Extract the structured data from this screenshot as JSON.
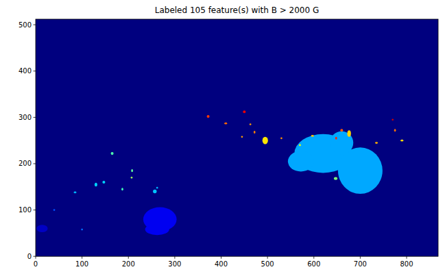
{
  "chart_data": {
    "type": "image",
    "title": "Labeled 105 feature(s) with B > 2000 G",
    "color": "#00007f",
    "xlim": [
      0,
      868
    ],
    "ylim": [
      0,
      512
    ],
    "xticks": [
      0,
      100,
      200,
      300,
      400,
      500,
      600,
      700,
      800
    ],
    "yticks": [
      0,
      100,
      200,
      300,
      400,
      500
    ],
    "features": [
      {
        "x": 620,
        "y": 222,
        "rx": 62,
        "ry": 42,
        "color": "#00a8ff"
      },
      {
        "x": 700,
        "y": 185,
        "rx": 48,
        "ry": 50,
        "color": "#00a8ff"
      },
      {
        "x": 572,
        "y": 205,
        "rx": 28,
        "ry": 22,
        "color": "#00a8ff"
      },
      {
        "x": 660,
        "y": 245,
        "rx": 25,
        "ry": 25,
        "color": "#00a8ff"
      },
      {
        "x": 268,
        "y": 80,
        "rx": 36,
        "ry": 26,
        "color": "#0000f1"
      },
      {
        "x": 262,
        "y": 58,
        "rx": 26,
        "ry": 12,
        "color": "#0000f1"
      },
      {
        "x": 14,
        "y": 60,
        "rx": 12,
        "ry": 8,
        "color": "#0000c4"
      },
      {
        "x": 130,
        "y": 155,
        "rx": 3,
        "ry": 4,
        "color": "#00d4ff"
      },
      {
        "x": 147,
        "y": 160,
        "rx": 3,
        "ry": 3,
        "color": "#00d4ff"
      },
      {
        "x": 187,
        "y": 145,
        "rx": 2,
        "ry": 3,
        "color": "#3fffb7"
      },
      {
        "x": 208,
        "y": 185,
        "rx": 2,
        "ry": 3,
        "color": "#5cffa0"
      },
      {
        "x": 207,
        "y": 170,
        "rx": 2,
        "ry": 2,
        "color": "#9fff5c"
      },
      {
        "x": 165,
        "y": 222,
        "rx": 3,
        "ry": 3,
        "color": "#4dffad"
      },
      {
        "x": 257,
        "y": 140,
        "rx": 4,
        "ry": 4,
        "color": "#00c4ff"
      },
      {
        "x": 85,
        "y": 138,
        "rx": 3,
        "ry": 2,
        "color": "#00b0ff"
      },
      {
        "x": 495,
        "y": 250,
        "rx": 6,
        "ry": 8,
        "color": "#ffe600"
      },
      {
        "x": 372,
        "y": 302,
        "rx": 3,
        "ry": 3,
        "color": "#ff3800"
      },
      {
        "x": 410,
        "y": 287,
        "rx": 3,
        "ry": 2,
        "color": "#ff6800"
      },
      {
        "x": 450,
        "y": 312,
        "rx": 3,
        "ry": 3,
        "color": "#e80000"
      },
      {
        "x": 463,
        "y": 285,
        "rx": 2,
        "ry": 2,
        "color": "#ff9c00"
      },
      {
        "x": 472,
        "y": 268,
        "rx": 2,
        "ry": 3,
        "color": "#ff8000"
      },
      {
        "x": 676,
        "y": 265,
        "rx": 4,
        "ry": 7,
        "color": "#ffd200"
      },
      {
        "x": 660,
        "y": 272,
        "rx": 3,
        "ry": 3,
        "color": "#ff5400"
      },
      {
        "x": 648,
        "y": 255,
        "rx": 2,
        "ry": 3,
        "color": "#ff2000"
      },
      {
        "x": 647,
        "y": 168,
        "rx": 4,
        "ry": 3,
        "color": "#7dff7a"
      },
      {
        "x": 735,
        "y": 245,
        "rx": 3,
        "ry": 2,
        "color": "#ffb000"
      },
      {
        "x": 775,
        "y": 272,
        "rx": 2,
        "ry": 3,
        "color": "#ff7000"
      },
      {
        "x": 770,
        "y": 295,
        "rx": 2,
        "ry": 2,
        "color": "#d00000"
      },
      {
        "x": 597,
        "y": 260,
        "rx": 3,
        "ry": 2,
        "color": "#ffc400"
      },
      {
        "x": 530,
        "y": 255,
        "rx": 2,
        "ry": 2,
        "color": "#ff9000"
      },
      {
        "x": 445,
        "y": 258,
        "rx": 2,
        "ry": 2,
        "color": "#ffa000"
      },
      {
        "x": 570,
        "y": 240,
        "rx": 2,
        "ry": 2,
        "color": "#f0ff00"
      },
      {
        "x": 100,
        "y": 58,
        "rx": 2,
        "ry": 2,
        "color": "#0070ff"
      },
      {
        "x": 40,
        "y": 100,
        "rx": 2,
        "ry": 2,
        "color": "#0050ff"
      },
      {
        "x": 790,
        "y": 250,
        "rx": 3,
        "ry": 2,
        "color": "#ffdc00"
      },
      {
        "x": 262,
        "y": 148,
        "rx": 2,
        "ry": 2,
        "color": "#00b0ff"
      }
    ]
  }
}
